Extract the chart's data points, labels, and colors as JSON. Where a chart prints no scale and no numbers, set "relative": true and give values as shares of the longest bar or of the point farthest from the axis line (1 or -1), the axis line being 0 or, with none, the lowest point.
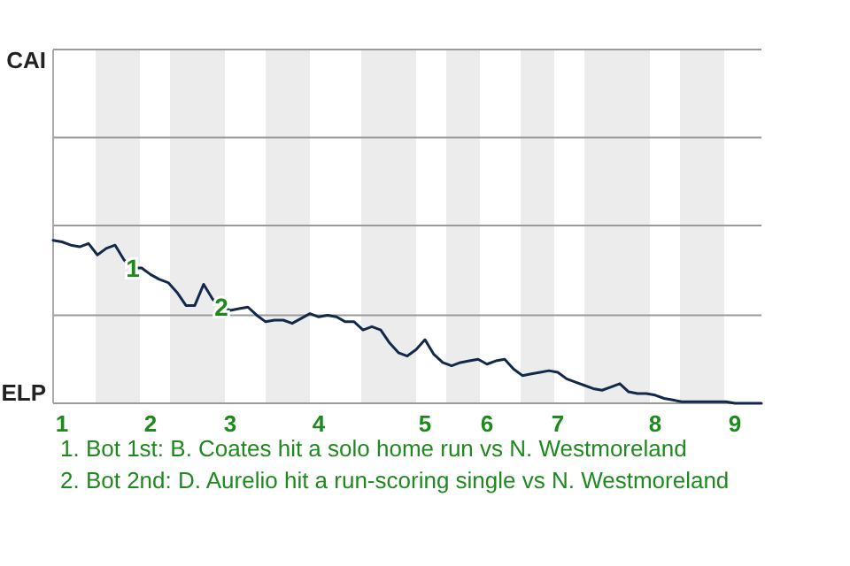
{
  "chart_data": {
    "type": "line",
    "relative": true,
    "categories": [
      null,
      "1",
      null,
      null,
      null,
      null,
      null,
      null,
      null,
      null,
      null,
      "2",
      null,
      null,
      null,
      null,
      null,
      null,
      null,
      null,
      "3",
      null,
      null,
      null,
      null,
      null,
      null,
      null,
      null,
      null,
      "4",
      null,
      null,
      null,
      null,
      null,
      null,
      null,
      null,
      null,
      null,
      null,
      "5",
      null,
      null,
      null,
      null,
      null,
      null,
      "6",
      null,
      null,
      null,
      null,
      null,
      null,
      null,
      "7",
      null,
      null,
      null,
      null,
      null,
      null,
      null,
      null,
      null,
      null,
      "8",
      null,
      null,
      null,
      null,
      null,
      null,
      null,
      null,
      "9",
      null,
      null,
      null
    ],
    "marker": "none",
    "line_style": "solid",
    "ref_lines": [
      {
        "axis": "y",
        "value": 0.54,
        "color": "#9a9a9a"
      },
      {
        "axis": "y",
        "value": 1.09,
        "color": "#9a9a9a"
      },
      {
        "axis": "y",
        "value": 1.63,
        "color": "#9a9a9a"
      }
    ],
    "series": [
      {
        "color": "#13294b",
        "values": [
          1,
          0.99,
          0.97,
          0.96,
          0.98,
          0.91,
          0.95,
          0.97,
          0.88,
          0.83,
          0.83,
          0.79,
          0.76,
          0.74,
          0.68,
          0.6,
          0.6,
          0.73,
          0.64,
          0.59,
          0.57,
          0.58,
          0.59,
          0.54,
          0.5,
          0.51,
          0.51,
          0.49,
          0.52,
          0.55,
          0.53,
          0.54,
          0.53,
          0.5,
          0.5,
          0.45,
          0.47,
          0.45,
          0.37,
          0.31,
          0.29,
          0.33,
          0.39,
          0.3,
          0.25,
          0.23,
          0.25,
          0.26,
          0.27,
          0.24,
          0.26,
          0.27,
          0.21,
          0.17,
          0.18,
          0.19,
          0.2,
          0.19,
          0.15,
          0.13,
          0.11,
          0.09,
          0.08,
          0.1,
          0.12,
          0.07,
          0.06,
          0.06,
          0.05,
          0.03,
          0.02,
          0.01,
          0.01,
          0.01,
          0.01,
          0.01,
          0.01,
          0,
          0,
          0,
          0
        ]
      }
    ],
    "annotations": [
      "CAI",
      "ELP",
      {
        "text": "1",
        "y": 0.83
      },
      {
        "text": "2",
        "y": 0.59
      },
      "1. Bot 1st: B. Coates hit a solo home run vs N. Westmoreland",
      "2. Bot 2nd: D. Aurelio hit a run-scoring single vs N. Westmoreland"
    ]
  }
}
